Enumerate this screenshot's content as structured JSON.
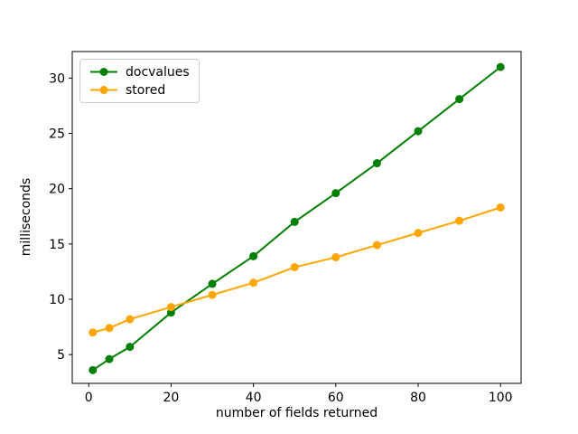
{
  "chart_data": {
    "type": "line",
    "title": "",
    "xlabel": "number of fields returned",
    "ylabel": "milliseconds",
    "x": [
      1,
      5,
      10,
      20,
      30,
      40,
      50,
      60,
      70,
      80,
      90,
      100
    ],
    "series": [
      {
        "name": "docvalues",
        "color": "#008000",
        "marker": "circle",
        "values": [
          3.6,
          4.6,
          5.7,
          8.8,
          11.4,
          13.9,
          17.0,
          19.6,
          22.3,
          25.2,
          28.1,
          31.0
        ]
      },
      {
        "name": "stored",
        "color": "#ffa500",
        "marker": "circle",
        "values": [
          7.0,
          7.4,
          8.2,
          9.3,
          10.4,
          11.5,
          12.9,
          13.8,
          14.9,
          16.0,
          17.1,
          18.3
        ]
      }
    ],
    "xticks": [
      0,
      20,
      40,
      60,
      80,
      100
    ],
    "yticks": [
      5,
      10,
      15,
      20,
      25,
      30
    ],
    "xlim": [
      -4,
      105
    ],
    "ylim": [
      2.4,
      32.4
    ],
    "grid": false,
    "legend_position": "upper left",
    "background": "#ffffff",
    "axis_color": "#000000"
  }
}
